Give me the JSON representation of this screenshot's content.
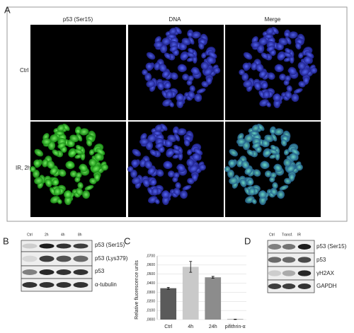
{
  "figure": {
    "panel_a": {
      "label": "A",
      "columns": [
        "p53 (Ser15)",
        "DNA",
        "Merge"
      ],
      "rows": [
        "Ctrl",
        "IR, 2h"
      ]
    },
    "panel_b": {
      "label": "B",
      "lanes": [
        "Ctrl",
        "2h",
        "4h",
        "8h"
      ],
      "blots": [
        "p53 (Ser15)",
        "p53 (Lys379)",
        "p53",
        "α-tubulin"
      ]
    },
    "panel_c": {
      "label": "C"
    },
    "panel_d": {
      "label": "D",
      "lanes": [
        "Ctrl",
        "Transf.",
        "IR"
      ],
      "blots": [
        "p53 (Ser15)",
        "p53",
        "γH2AX",
        "GAPDH"
      ]
    }
  },
  "chart_data": {
    "type": "bar",
    "y_label": "Relative fluorescence units",
    "categories": [
      "Ctrl",
      "4h",
      "24h",
      "pifithrin-α"
    ],
    "values": [
      0.0345,
      0.058,
      0.0465,
      0.0003
    ],
    "errors": [
      0.001,
      0.006,
      0.001,
      0.0002
    ],
    "colors": [
      "#5a5a5a",
      "#c9c9c9",
      "#8c8c8c",
      "#3a3a3a"
    ],
    "ylim": [
      0,
      0.07
    ],
    "yticks": [
      {
        "value": 0,
        "label": ",0000"
      },
      {
        "value": 0.01,
        "label": ",0100"
      },
      {
        "value": 0.02,
        "label": ",0200"
      },
      {
        "value": 0.03,
        "label": ",0300"
      },
      {
        "value": 0.04,
        "label": ",0400"
      },
      {
        "value": 0.05,
        "label": ",0500"
      },
      {
        "value": 0.06,
        "label": ",0600"
      },
      {
        "value": 0.07,
        "label": ",0700"
      }
    ],
    "grid": true
  }
}
